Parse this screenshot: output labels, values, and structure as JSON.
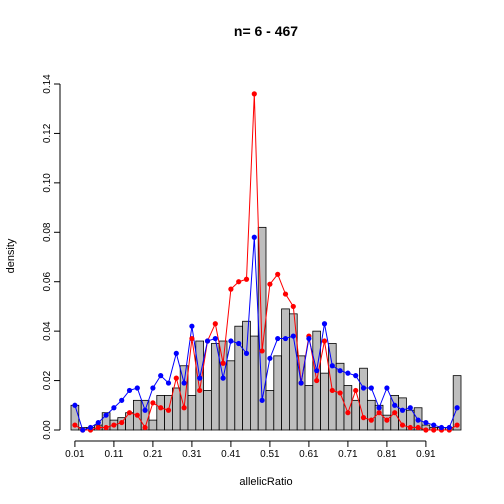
{
  "chart_data": {
    "type": "bar",
    "title": "n= 6 - 467",
    "xlabel": "allelicRatio",
    "ylabel": "density",
    "xlim": [
      0,
      1
    ],
    "ylim": [
      0,
      0.14
    ],
    "xticks": [
      "0.01",
      "0.11",
      "0.21",
      "0.31",
      "0.41",
      "0.51",
      "0.61",
      "0.71",
      "0.81",
      "0.91"
    ],
    "yticks": [
      "0.00",
      "0.02",
      "0.04",
      "0.06",
      "0.08",
      "0.10",
      "0.12",
      "0.14"
    ],
    "grid": false,
    "bin_width": 0.02,
    "bins": {
      "x": [
        0.01,
        0.03,
        0.05,
        0.07,
        0.09,
        0.11,
        0.13,
        0.15,
        0.17,
        0.19,
        0.21,
        0.23,
        0.25,
        0.27,
        0.29,
        0.31,
        0.33,
        0.35,
        0.37,
        0.39,
        0.41,
        0.43,
        0.45,
        0.47,
        0.49,
        0.51,
        0.53,
        0.55,
        0.57,
        0.59,
        0.61,
        0.63,
        0.65,
        0.67,
        0.69,
        0.71,
        0.73,
        0.75,
        0.77,
        0.79,
        0.81,
        0.83,
        0.85,
        0.87,
        0.89,
        0.91,
        0.93,
        0.95,
        0.97,
        0.99
      ],
      "values": [
        0.01,
        0.001,
        0.001,
        0.002,
        0.007,
        0.004,
        0.005,
        0.007,
        0.012,
        0.012,
        0.004,
        0.014,
        0.014,
        0.017,
        0.026,
        0.014,
        0.036,
        0.016,
        0.035,
        0.036,
        0.028,
        0.042,
        0.044,
        0.038,
        0.082,
        0.016,
        0.03,
        0.049,
        0.047,
        0.03,
        0.018,
        0.04,
        0.023,
        0.035,
        0.027,
        0.018,
        0.012,
        0.025,
        0.012,
        0.01,
        0.006,
        0.014,
        0.013,
        0.008,
        0.009,
        0.002,
        0.001,
        0.001,
        0.001,
        0.022
      ]
    },
    "series": [
      {
        "color": "#ff0000",
        "x": [
          0.01,
          0.03,
          0.05,
          0.07,
          0.09,
          0.11,
          0.13,
          0.15,
          0.17,
          0.19,
          0.21,
          0.23,
          0.25,
          0.27,
          0.29,
          0.31,
          0.33,
          0.35,
          0.37,
          0.39,
          0.41,
          0.43,
          0.45,
          0.47,
          0.49,
          0.51,
          0.53,
          0.55,
          0.57,
          0.59,
          0.61,
          0.63,
          0.65,
          0.67,
          0.69,
          0.71,
          0.73,
          0.75,
          0.77,
          0.79,
          0.81,
          0.83,
          0.85,
          0.87,
          0.89,
          0.91,
          0.93,
          0.95,
          0.97,
          0.99
        ],
        "values": [
          0.002,
          0.0,
          0.0,
          0.001,
          0.001,
          0.002,
          0.003,
          0.007,
          0.006,
          0.001,
          0.011,
          0.009,
          0.008,
          0.021,
          0.009,
          0.037,
          0.016,
          0.036,
          0.043,
          0.027,
          0.057,
          0.06,
          0.061,
          0.136,
          0.032,
          0.059,
          0.063,
          0.055,
          0.05,
          0.019,
          0.038,
          0.02,
          0.036,
          0.016,
          0.015,
          0.007,
          0.016,
          0.005,
          0.004,
          0.007,
          0.004,
          0.007,
          0.002,
          0.001,
          0.001,
          0.0,
          0.0,
          0.0,
          0.0,
          0.002
        ]
      },
      {
        "color": "#0000ff",
        "x": [
          0.01,
          0.03,
          0.05,
          0.07,
          0.09,
          0.11,
          0.13,
          0.15,
          0.17,
          0.19,
          0.21,
          0.23,
          0.25,
          0.27,
          0.29,
          0.31,
          0.33,
          0.35,
          0.37,
          0.39,
          0.41,
          0.43,
          0.45,
          0.47,
          0.49,
          0.51,
          0.53,
          0.55,
          0.57,
          0.59,
          0.61,
          0.63,
          0.65,
          0.67,
          0.69,
          0.71,
          0.73,
          0.75,
          0.77,
          0.79,
          0.81,
          0.83,
          0.85,
          0.87,
          0.89,
          0.91,
          0.93,
          0.95,
          0.97,
          0.99
        ],
        "values": [
          0.01,
          0.0,
          0.001,
          0.003,
          0.006,
          0.009,
          0.012,
          0.016,
          0.017,
          0.008,
          0.017,
          0.022,
          0.019,
          0.031,
          0.019,
          0.042,
          0.021,
          0.036,
          0.037,
          0.021,
          0.036,
          0.035,
          0.031,
          0.078,
          0.012,
          0.029,
          0.037,
          0.037,
          0.038,
          0.019,
          0.037,
          0.024,
          0.043,
          0.026,
          0.024,
          0.023,
          0.022,
          0.017,
          0.017,
          0.009,
          0.017,
          0.01,
          0.008,
          0.009,
          0.004,
          0.003,
          0.002,
          0.001,
          0.001,
          0.009
        ]
      }
    ]
  }
}
